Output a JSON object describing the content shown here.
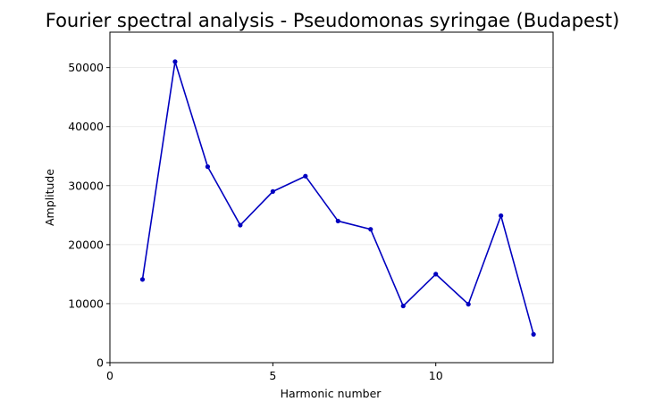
{
  "chart_data": {
    "type": "line",
    "title": "Fourier spectral analysis - Pseudomonas syringae (Budapest)",
    "xlabel": "Harmonic number",
    "ylabel": "Amplitude",
    "xlim": [
      0,
      13.6
    ],
    "ylim": [
      0,
      56000
    ],
    "xticks": [
      0,
      5,
      10
    ],
    "yticks": [
      0,
      10000,
      20000,
      30000,
      40000,
      50000
    ],
    "grid": "horizontal",
    "color": "#0000c0",
    "series": [
      {
        "x": [
          1,
          2,
          3,
          4,
          5,
          6,
          7,
          8,
          9,
          10,
          11,
          12,
          13
        ],
        "values": [
          14100,
          51000,
          33200,
          23300,
          29000,
          31600,
          24000,
          22600,
          9600,
          15000,
          9900,
          24900,
          4800
        ]
      }
    ]
  }
}
